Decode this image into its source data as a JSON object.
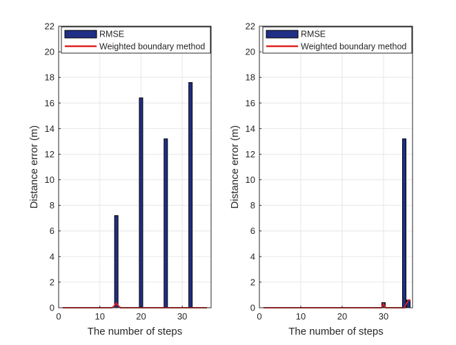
{
  "colors": {
    "bar_fill": "#1f2f86",
    "bar_edge": "#000000",
    "line": "#e02020",
    "axis": "#262626",
    "grid": "#e6e6e6",
    "background": "#ffffff"
  },
  "chart_data": [
    {
      "type": "bar",
      "xlabel": "The number of steps",
      "ylabel": "Distance error (m)",
      "xlim": [
        0,
        37
      ],
      "ylim": [
        0,
        22
      ],
      "xticks": [
        0,
        10,
        20,
        30
      ],
      "yticks": [
        0,
        2,
        4,
        6,
        8,
        10,
        12,
        14,
        16,
        18,
        20,
        22
      ],
      "grid": true,
      "legend_position": "top-right",
      "series": [
        {
          "name": "RMSE",
          "kind": "bar",
          "x": [
            14,
            20,
            26,
            32
          ],
          "values": [
            7.2,
            16.4,
            13.2,
            17.6
          ]
        },
        {
          "name": "Weighted boundary method",
          "kind": "line",
          "x": [
            1,
            13,
            13.5,
            14,
            14.5,
            15,
            36
          ],
          "values": [
            0,
            0,
            0.15,
            0.35,
            0.15,
            0,
            0
          ]
        }
      ]
    },
    {
      "type": "bar",
      "xlabel": "The number of steps",
      "ylabel": "Distance error (m)",
      "xlim": [
        0,
        37
      ],
      "ylim": [
        0,
        22
      ],
      "xticks": [
        0,
        10,
        20,
        30
      ],
      "yticks": [
        0,
        2,
        4,
        6,
        8,
        10,
        12,
        14,
        16,
        18,
        20,
        22
      ],
      "grid": true,
      "legend_position": "top-right",
      "series": [
        {
          "name": "RMSE",
          "kind": "bar",
          "x": [
            30,
            35,
            36
          ],
          "values": [
            0.4,
            13.2,
            0.6
          ]
        },
        {
          "name": "Weighted boundary method",
          "kind": "line",
          "x": [
            1,
            29.5,
            30,
            30.5,
            35,
            36,
            36.5
          ],
          "values": [
            0,
            0,
            0.3,
            0,
            0,
            0.6,
            0.6
          ]
        }
      ]
    }
  ]
}
